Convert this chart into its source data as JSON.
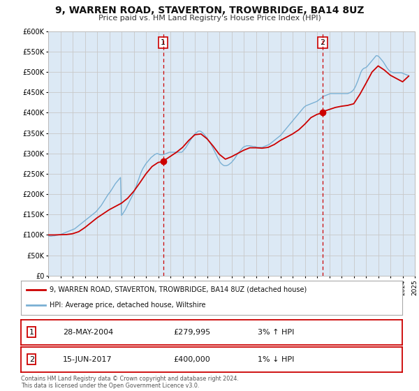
{
  "title": "9, WARREN ROAD, STAVERTON, TROWBRIDGE, BA14 8UZ",
  "subtitle": "Price paid vs. HM Land Registry's House Price Index (HPI)",
  "legend_line1": "9, WARREN ROAD, STAVERTON, TROWBRIDGE, BA14 8UZ (detached house)",
  "legend_line2": "HPI: Average price, detached house, Wiltshire",
  "annotation1_date": "28-MAY-2004",
  "annotation1_price": "£279,995",
  "annotation1_hpi": "3% ↑ HPI",
  "annotation1_year": 2004.41,
  "annotation1_value": 279995,
  "annotation2_date": "15-JUN-2017",
  "annotation2_price": "£400,000",
  "annotation2_hpi": "1% ↓ HPI",
  "annotation2_year": 2017.46,
  "annotation2_value": 400000,
  "price_color": "#cc0000",
  "hpi_color": "#7ab0d4",
  "background_color": "#ffffff",
  "plot_bg_color": "#dce9f5",
  "grid_color": "#c8c8c8",
  "vline_color": "#cc0000",
  "dot_color": "#cc0000",
  "ylim_max": 600000,
  "footnote": "Contains HM Land Registry data © Crown copyright and database right 2024.\nThis data is licensed under the Open Government Licence v3.0.",
  "hpi_x": [
    1995.0,
    1995.083,
    1995.167,
    1995.25,
    1995.333,
    1995.417,
    1995.5,
    1995.583,
    1995.667,
    1995.75,
    1995.833,
    1995.917,
    1996.0,
    1996.083,
    1996.167,
    1996.25,
    1996.333,
    1996.417,
    1996.5,
    1996.583,
    1996.667,
    1996.75,
    1996.833,
    1996.917,
    1997.0,
    1997.083,
    1997.167,
    1997.25,
    1997.333,
    1997.417,
    1997.5,
    1997.583,
    1997.667,
    1997.75,
    1997.833,
    1997.917,
    1998.0,
    1998.083,
    1998.167,
    1998.25,
    1998.333,
    1998.417,
    1998.5,
    1998.583,
    1998.667,
    1998.75,
    1998.833,
    1998.917,
    1999.0,
    1999.083,
    1999.167,
    1999.25,
    1999.333,
    1999.417,
    1999.5,
    1999.583,
    1999.667,
    1999.75,
    1999.833,
    1999.917,
    2000.0,
    2000.083,
    2000.167,
    2000.25,
    2000.333,
    2000.417,
    2000.5,
    2000.583,
    2000.667,
    2000.75,
    2000.833,
    2000.917,
    2001.0,
    2001.083,
    2001.167,
    2001.25,
    2001.333,
    2001.417,
    2001.5,
    2001.583,
    2001.667,
    2001.75,
    2001.833,
    2001.917,
    2002.0,
    2002.083,
    2002.167,
    2002.25,
    2002.333,
    2002.417,
    2002.5,
    2002.583,
    2002.667,
    2002.75,
    2002.833,
    2002.917,
    2003.0,
    2003.083,
    2003.167,
    2003.25,
    2003.333,
    2003.417,
    2003.5,
    2003.583,
    2003.667,
    2003.75,
    2003.833,
    2003.917,
    2004.0,
    2004.083,
    2004.167,
    2004.25,
    2004.333,
    2004.417,
    2004.5,
    2004.583,
    2004.667,
    2004.75,
    2004.833,
    2004.917,
    2005.0,
    2005.083,
    2005.167,
    2005.25,
    2005.333,
    2005.417,
    2005.5,
    2005.583,
    2005.667,
    2005.75,
    2005.833,
    2005.917,
    2006.0,
    2006.083,
    2006.167,
    2006.25,
    2006.333,
    2006.417,
    2006.5,
    2006.583,
    2006.667,
    2006.75,
    2006.833,
    2006.917,
    2007.0,
    2007.083,
    2007.167,
    2007.25,
    2007.333,
    2007.417,
    2007.5,
    2007.583,
    2007.667,
    2007.75,
    2007.833,
    2007.917,
    2008.0,
    2008.083,
    2008.167,
    2008.25,
    2008.333,
    2008.417,
    2008.5,
    2008.583,
    2008.667,
    2008.75,
    2008.833,
    2008.917,
    2009.0,
    2009.083,
    2009.167,
    2009.25,
    2009.333,
    2009.417,
    2009.5,
    2009.583,
    2009.667,
    2009.75,
    2009.833,
    2009.917,
    2010.0,
    2010.083,
    2010.167,
    2010.25,
    2010.333,
    2010.417,
    2010.5,
    2010.583,
    2010.667,
    2010.75,
    2010.833,
    2010.917,
    2011.0,
    2011.083,
    2011.167,
    2011.25,
    2011.333,
    2011.417,
    2011.5,
    2011.583,
    2011.667,
    2011.75,
    2011.833,
    2011.917,
    2012.0,
    2012.083,
    2012.167,
    2012.25,
    2012.333,
    2012.417,
    2012.5,
    2012.583,
    2012.667,
    2012.75,
    2012.833,
    2012.917,
    2013.0,
    2013.083,
    2013.167,
    2013.25,
    2013.333,
    2013.417,
    2013.5,
    2013.583,
    2013.667,
    2013.75,
    2013.833,
    2013.917,
    2014.0,
    2014.083,
    2014.167,
    2014.25,
    2014.333,
    2014.417,
    2014.5,
    2014.583,
    2014.667,
    2014.75,
    2014.833,
    2014.917,
    2015.0,
    2015.083,
    2015.167,
    2015.25,
    2015.333,
    2015.417,
    2015.5,
    2015.583,
    2015.667,
    2015.75,
    2015.833,
    2015.917,
    2016.0,
    2016.083,
    2016.167,
    2016.25,
    2016.333,
    2016.417,
    2016.5,
    2016.583,
    2016.667,
    2016.75,
    2016.833,
    2016.917,
    2017.0,
    2017.083,
    2017.167,
    2017.25,
    2017.333,
    2017.417,
    2017.5,
    2017.583,
    2017.667,
    2017.75,
    2017.833,
    2017.917,
    2018.0,
    2018.083,
    2018.167,
    2018.25,
    2018.333,
    2018.417,
    2018.5,
    2018.583,
    2018.667,
    2018.75,
    2018.833,
    2018.917,
    2019.0,
    2019.083,
    2019.167,
    2019.25,
    2019.333,
    2019.417,
    2019.5,
    2019.583,
    2019.667,
    2019.75,
    2019.833,
    2019.917,
    2020.0,
    2020.083,
    2020.167,
    2020.25,
    2020.333,
    2020.417,
    2020.5,
    2020.583,
    2020.667,
    2020.75,
    2020.833,
    2020.917,
    2021.0,
    2021.083,
    2021.167,
    2021.25,
    2021.333,
    2021.417,
    2021.5,
    2021.583,
    2021.667,
    2021.75,
    2021.833,
    2021.917,
    2022.0,
    2022.083,
    2022.167,
    2022.25,
    2022.333,
    2022.417,
    2022.5,
    2022.583,
    2022.667,
    2022.75,
    2022.833,
    2022.917,
    2023.0,
    2023.083,
    2023.167,
    2023.25,
    2023.333,
    2023.417,
    2023.5,
    2023.583,
    2023.667,
    2023.75,
    2023.833,
    2023.917,
    2024.0,
    2024.083,
    2024.167,
    2024.25,
    2024.333,
    2024.417,
    2024.5
  ],
  "hpi_y": [
    98000,
    97500,
    97000,
    97000,
    97500,
    98000,
    98000,
    98500,
    99000,
    99500,
    100000,
    100500,
    101000,
    102000,
    103000,
    104000,
    105000,
    106000,
    107000,
    108000,
    109000,
    110000,
    111000,
    112000,
    113000,
    114000,
    115000,
    117000,
    119000,
    121000,
    123000,
    125000,
    127000,
    129000,
    131000,
    133000,
    135000,
    137000,
    139000,
    141000,
    143000,
    145000,
    147000,
    149000,
    151000,
    153000,
    155000,
    157000,
    160000,
    163000,
    166000,
    169000,
    172000,
    176000,
    180000,
    184000,
    188000,
    192000,
    196000,
    200000,
    203000,
    206000,
    210000,
    214000,
    218000,
    222000,
    226000,
    229000,
    232000,
    235000,
    238000,
    241000,
    148000,
    151000,
    155000,
    159000,
    163000,
    168000,
    173000,
    178000,
    183000,
    188000,
    193000,
    198000,
    203000,
    210000,
    217000,
    224000,
    231000,
    238000,
    245000,
    252000,
    258000,
    263000,
    267000,
    271000,
    275000,
    278000,
    281000,
    284000,
    287000,
    290000,
    292000,
    294000,
    296000,
    298000,
    299000,
    300000,
    299000,
    298000,
    297000,
    297000,
    297000,
    297000,
    298000,
    299000,
    300000,
    301000,
    302000,
    303000,
    303000,
    303000,
    303000,
    303000,
    303000,
    303000,
    303000,
    303000,
    303000,
    303000,
    303000,
    303000,
    305000,
    308000,
    311000,
    314000,
    318000,
    322000,
    326000,
    330000,
    334000,
    338000,
    342000,
    345000,
    348000,
    350000,
    352000,
    354000,
    355000,
    355000,
    354000,
    352000,
    350000,
    347000,
    344000,
    341000,
    338000,
    334000,
    330000,
    326000,
    322000,
    317000,
    312000,
    307000,
    302000,
    297000,
    292000,
    287000,
    282000,
    278000,
    275000,
    273000,
    271000,
    270000,
    270000,
    270000,
    271000,
    272000,
    274000,
    276000,
    278000,
    281000,
    284000,
    287000,
    291000,
    295000,
    299000,
    302000,
    305000,
    308000,
    311000,
    314000,
    316000,
    317000,
    318000,
    319000,
    319000,
    319000,
    319000,
    318000,
    318000,
    317000,
    317000,
    317000,
    316000,
    315000,
    315000,
    315000,
    315000,
    315000,
    315000,
    316000,
    317000,
    318000,
    319000,
    320000,
    321000,
    322000,
    324000,
    326000,
    328000,
    330000,
    332000,
    334000,
    336000,
    338000,
    340000,
    342000,
    344000,
    347000,
    350000,
    353000,
    356000,
    359000,
    362000,
    365000,
    368000,
    371000,
    374000,
    377000,
    380000,
    383000,
    386000,
    389000,
    392000,
    395000,
    398000,
    401000,
    404000,
    407000,
    410000,
    413000,
    415000,
    417000,
    418000,
    419000,
    420000,
    421000,
    422000,
    423000,
    424000,
    425000,
    426000,
    427000,
    428000,
    430000,
    432000,
    434000,
    436000,
    438000,
    440000,
    441000,
    442000,
    443000,
    444000,
    445000,
    446000,
    447000,
    447000,
    447000,
    447000,
    447000,
    447000,
    447000,
    447000,
    447000,
    447000,
    447000,
    447000,
    447000,
    447000,
    447000,
    447000,
    447000,
    447000,
    448000,
    449000,
    450000,
    452000,
    454000,
    457000,
    461000,
    466000,
    472000,
    478000,
    485000,
    492000,
    499000,
    504000,
    507000,
    509000,
    510000,
    511000,
    513000,
    516000,
    519000,
    522000,
    525000,
    528000,
    531000,
    534000,
    537000,
    540000,
    540000,
    539000,
    537000,
    534000,
    531000,
    528000,
    525000,
    521000,
    517000,
    513000,
    509000,
    506000,
    503000,
    501000,
    500000,
    499000,
    498000,
    498000,
    498000,
    498000,
    498000,
    498000,
    498000,
    498000,
    498000,
    497000,
    496000,
    495000,
    494000,
    493000,
    492000,
    491000
  ],
  "price_x": [
    1995.0,
    1995.5,
    1996.0,
    1996.5,
    1997.0,
    1997.5,
    1998.0,
    1998.5,
    1999.0,
    1999.5,
    2000.0,
    2000.5,
    2001.0,
    2001.5,
    2002.0,
    2002.5,
    2003.0,
    2003.5,
    2004.0,
    2004.41,
    2004.5,
    2005.0,
    2005.5,
    2006.0,
    2006.5,
    2007.0,
    2007.5,
    2008.0,
    2008.5,
    2009.0,
    2009.5,
    2010.0,
    2010.5,
    2011.0,
    2011.5,
    2012.0,
    2012.5,
    2013.0,
    2013.5,
    2014.0,
    2014.5,
    2015.0,
    2015.5,
    2016.0,
    2016.5,
    2017.0,
    2017.46,
    2017.5,
    2018.0,
    2018.5,
    2019.0,
    2019.5,
    2020.0,
    2020.5,
    2021.0,
    2021.5,
    2022.0,
    2022.5,
    2023.0,
    2023.5,
    2024.0,
    2024.5
  ],
  "price_y": [
    100000,
    100000,
    100500,
    101000,
    103000,
    108000,
    118000,
    130000,
    142000,
    152000,
    162000,
    170000,
    178000,
    190000,
    207000,
    228000,
    250000,
    268000,
    278000,
    279995,
    283000,
    293000,
    303000,
    315000,
    332000,
    346000,
    348000,
    336000,
    318000,
    298000,
    286000,
    292000,
    300000,
    308000,
    314000,
    314000,
    313000,
    315000,
    322000,
    332000,
    340000,
    348000,
    358000,
    372000,
    388000,
    396000,
    400000,
    403000,
    408000,
    413000,
    416000,
    418000,
    422000,
    445000,
    472000,
    500000,
    515000,
    505000,
    492000,
    484000,
    476000,
    490000
  ]
}
